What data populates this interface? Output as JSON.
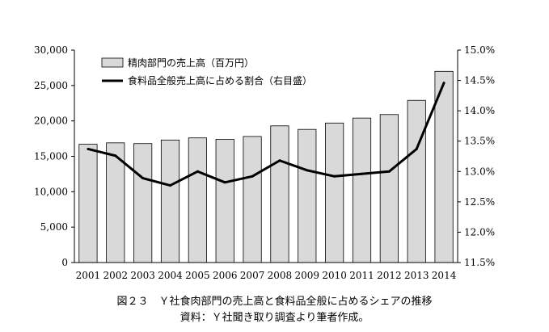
{
  "chart_data": {
    "type": "bar",
    "categories": [
      "2001",
      "2002",
      "2003",
      "2004",
      "2005",
      "2006",
      "2007",
      "2008",
      "2009",
      "2010",
      "2011",
      "2012",
      "2013",
      "2014"
    ],
    "series": [
      {
        "name": "精肉部門の売上高（百万円）",
        "type": "bar",
        "axis": "left",
        "color": "#d9d9d9",
        "values": [
          16700,
          16900,
          16800,
          17300,
          17600,
          17400,
          17800,
          19300,
          18800,
          19700,
          20400,
          20900,
          22900,
          27000
        ]
      },
      {
        "name": "食料品全般売上高に占める割合（右目盛）",
        "type": "line",
        "axis": "right",
        "color": "#000000",
        "values": [
          13.37,
          13.26,
          12.89,
          12.77,
          13.0,
          12.82,
          12.92,
          13.18,
          13.02,
          12.92,
          12.96,
          13.0,
          13.37,
          14.46
        ]
      }
    ],
    "y_left": {
      "lim": [
        0,
        30000
      ],
      "ticks": [
        "0",
        "5,000",
        "10,000",
        "15,000",
        "20,000",
        "25,000",
        "30,000"
      ]
    },
    "y_right": {
      "lim": [
        11.5,
        15.0
      ],
      "ticks": [
        "11.5%",
        "12.0%",
        "12.5%",
        "13.0%",
        "13.5%",
        "14.0%",
        "14.5%",
        "15.0%"
      ]
    },
    "grid": false,
    "legend_position": "top-left",
    "title": "図２３　Ｙ社食肉部門の売上高と食料品全般に占めるシェアの推移",
    "subtitle": "資料：Ｙ社聞き取り調査より筆者作成。"
  }
}
